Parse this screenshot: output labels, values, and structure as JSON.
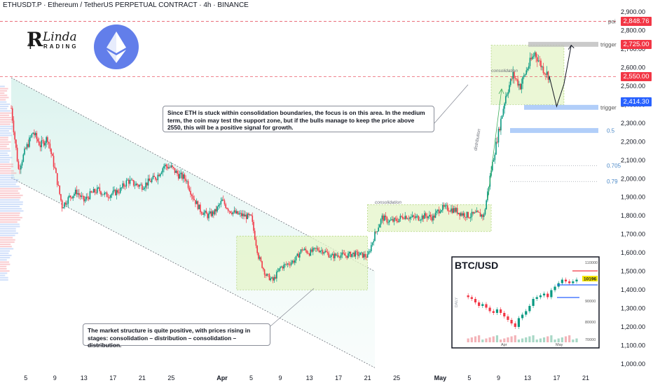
{
  "header": {
    "title": "ETHUSDT.P · Ethereum / TetherUS PERPETUAL CONTRACT · 4h · BINANCE"
  },
  "brand": {
    "letter_r": "R",
    "text_linda": "Linda",
    "letter_t": "T",
    "text_rading": "RADING",
    "logo_icon": "ethereum-diamond-icon",
    "logo_color": "#627eea"
  },
  "notes": {
    "top": "Since ETH is stuck within consolidation boundaries, the focus is on this area. In the medium term, the coin may test the support zone, but if the bulls manage to keep the price above 2550, this will be a positive signal for growth.",
    "bottom": "The market structure is quite positive, with prices rising in stages: consolidation – distribution – consolidation – distribution."
  },
  "price_tags": [
    {
      "value": "2,848.76",
      "color": "#f23645"
    },
    {
      "value": "2,725.00",
      "color": "#f23645"
    },
    {
      "value": "2,550.00",
      "color": "#f23645"
    },
    {
      "value": "2,414.30",
      "color": "#2962ff"
    }
  ],
  "chart_data": {
    "type": "candlestick",
    "symbol": "ETHUSDT.P",
    "exchange": "BINANCE",
    "timeframe": "4h",
    "y_axis": {
      "min": 1000,
      "max": 2900,
      "ticks": [
        "2,900.00",
        "2,800.00",
        "2,700.00",
        "2,600.00",
        "2,500.00",
        "2,400.00",
        "2,300.00",
        "2,200.00",
        "2,100.00",
        "2,000.00",
        "1,900.00",
        "1,800.00",
        "1,700.00",
        "1,600.00",
        "1,500.00",
        "1,400.00",
        "1,300.00",
        "1,200.00",
        "1,100.00",
        "1,000.00"
      ]
    },
    "x_axis": {
      "start": "2025-03-03",
      "ticks": [
        {
          "label": "5",
          "date": "2025-03-05",
          "bold": false
        },
        {
          "label": "9",
          "date": "2025-03-09",
          "bold": false
        },
        {
          "label": "13",
          "date": "2025-03-13",
          "bold": false
        },
        {
          "label": "17",
          "date": "2025-03-17",
          "bold": false
        },
        {
          "label": "21",
          "date": "2025-03-21",
          "bold": false
        },
        {
          "label": "25",
          "date": "2025-03-25",
          "bold": false
        },
        {
          "label": "Apr",
          "date": "2025-04-01",
          "bold": true
        },
        {
          "label": "5",
          "date": "2025-04-05",
          "bold": false
        },
        {
          "label": "9",
          "date": "2025-04-09",
          "bold": false
        },
        {
          "label": "13",
          "date": "2025-04-13",
          "bold": false
        },
        {
          "label": "17",
          "date": "2025-04-17",
          "bold": false
        },
        {
          "label": "21",
          "date": "2025-04-21",
          "bold": false
        },
        {
          "label": "25",
          "date": "2025-04-25",
          "bold": false
        },
        {
          "label": "May",
          "date": "2025-05-01",
          "bold": true
        },
        {
          "label": "5",
          "date": "2025-05-05",
          "bold": false
        },
        {
          "label": "9",
          "date": "2025-05-09",
          "bold": false
        },
        {
          "label": "13",
          "date": "2025-05-13",
          "bold": false
        },
        {
          "label": "17",
          "date": "2025-05-17",
          "bold": false
        },
        {
          "label": "21",
          "date": "2025-05-21",
          "bold": false
        }
      ]
    },
    "path": [
      [
        "2025-03-03",
        2380
      ],
      [
        "2025-03-04",
        2050
      ],
      [
        "2025-03-05",
        2160
      ],
      [
        "2025-03-06",
        2250
      ],
      [
        "2025-03-07",
        2180
      ],
      [
        "2025-03-08",
        2220
      ],
      [
        "2025-03-09",
        2050
      ],
      [
        "2025-03-10",
        1850
      ],
      [
        "2025-03-11",
        1900
      ],
      [
        "2025-03-12",
        1930
      ],
      [
        "2025-03-13",
        1880
      ],
      [
        "2025-03-14",
        1920
      ],
      [
        "2025-03-15",
        1940
      ],
      [
        "2025-03-16",
        1910
      ],
      [
        "2025-03-17",
        1920
      ],
      [
        "2025-03-18",
        1940
      ],
      [
        "2025-03-19",
        1990
      ],
      [
        "2025-03-20",
        1970
      ],
      [
        "2025-03-21",
        1960
      ],
      [
        "2025-03-22",
        1985
      ],
      [
        "2025-03-23",
        2010
      ],
      [
        "2025-03-24",
        2070
      ],
      [
        "2025-03-25",
        2060
      ],
      [
        "2025-03-26",
        2020
      ],
      [
        "2025-03-27",
        2000
      ],
      [
        "2025-03-28",
        1900
      ],
      [
        "2025-03-29",
        1830
      ],
      [
        "2025-03-30",
        1800
      ],
      [
        "2025-03-31",
        1820
      ],
      [
        "2025-04-01",
        1880
      ],
      [
        "2025-04-02",
        1830
      ],
      [
        "2025-04-03",
        1810
      ],
      [
        "2025-04-04",
        1800
      ],
      [
        "2025-04-05",
        1790
      ],
      [
        "2025-04-06",
        1580
      ],
      [
        "2025-04-07",
        1480
      ],
      [
        "2025-04-08",
        1450
      ],
      [
        "2025-04-09",
        1520
      ],
      [
        "2025-04-10",
        1540
      ],
      [
        "2025-04-11",
        1560
      ],
      [
        "2025-04-12",
        1620
      ],
      [
        "2025-04-13",
        1600
      ],
      [
        "2025-04-14",
        1620
      ],
      [
        "2025-04-15",
        1610
      ],
      [
        "2025-04-16",
        1580
      ],
      [
        "2025-04-17",
        1590
      ],
      [
        "2025-04-18",
        1585
      ],
      [
        "2025-04-19",
        1595
      ],
      [
        "2025-04-20",
        1590
      ],
      [
        "2025-04-21",
        1580
      ],
      [
        "2025-04-22",
        1700
      ],
      [
        "2025-04-23",
        1790
      ],
      [
        "2025-04-24",
        1770
      ],
      [
        "2025-04-25",
        1775
      ],
      [
        "2025-04-26",
        1800
      ],
      [
        "2025-04-27",
        1790
      ],
      [
        "2025-04-28",
        1790
      ],
      [
        "2025-04-29",
        1800
      ],
      [
        "2025-04-30",
        1790
      ],
      [
        "2025-05-01",
        1840
      ],
      [
        "2025-05-02",
        1840
      ],
      [
        "2025-05-03",
        1830
      ],
      [
        "2025-05-04",
        1810
      ],
      [
        "2025-05-05",
        1800
      ],
      [
        "2025-05-06",
        1810
      ],
      [
        "2025-05-07",
        1800
      ],
      [
        "2025-05-08",
        2050
      ],
      [
        "2025-05-09",
        2250
      ],
      [
        "2025-05-10",
        2450
      ],
      [
        "2025-05-11",
        2560
      ],
      [
        "2025-05-12",
        2500
      ],
      [
        "2025-05-13",
        2600
      ],
      [
        "2025-05-14",
        2680
      ],
      [
        "2025-05-15",
        2600
      ],
      [
        "2025-05-16",
        2550
      ]
    ],
    "zones": [
      {
        "label": "",
        "from": "2025-04-03",
        "to": "2025-04-21",
        "low": 1400,
        "high": 1690
      },
      {
        "label": "consolidation",
        "from": "2025-04-21",
        "to": "2025-05-08",
        "low": 1715,
        "high": 1860
      },
      {
        "label": "consolidation",
        "from": "2025-05-08",
        "to": "2025-05-18",
        "low": 2400,
        "high": 2720
      }
    ],
    "levels": [
      {
        "label": "poi",
        "value": 2848.76,
        "style": "dashed"
      },
      {
        "label": "trigger",
        "value": 2725,
        "style": "band"
      },
      {
        "label": "",
        "value": 2550,
        "style": "dashed"
      },
      {
        "label": "trigger",
        "value": 2385,
        "style": "band"
      },
      {
        "label": "0.5",
        "value": 2260,
        "style": "band"
      },
      {
        "label": "0.705",
        "value": 2070,
        "style": "dotted"
      },
      {
        "label": "0.79",
        "value": 1985,
        "style": "dotted"
      }
    ],
    "channel": {
      "upper": [
        [
          "2025-03-03",
          2545
        ],
        [
          "2025-04-22",
          1500
        ]
      ],
      "lower": [
        [
          "2025-03-03",
          2005
        ],
        [
          "2025-04-22",
          980
        ]
      ]
    },
    "annotations": [
      {
        "text": "consolidation",
        "at": [
          "2025-05-08",
          2575
        ]
      },
      {
        "text": "distribution",
        "at": [
          "2025-05-06",
          2150
        ]
      },
      {
        "text": "consolidation",
        "at": [
          "2025-04-22",
          1865
        ]
      }
    ],
    "projection": [
      [
        "2025-05-16",
        2550
      ],
      [
        "2025-05-17",
        2390
      ],
      [
        "2025-05-18",
        2510
      ],
      [
        "2025-05-19",
        2720
      ]
    ],
    "inset": {
      "title": "BTC/USD",
      "label_side": "DAILY",
      "y_ticks": [
        "110000",
        "90000",
        "80000",
        "70000"
      ],
      "x_ticks": [
        "Apr",
        "May"
      ],
      "last_price": "10196",
      "path": [
        96,
        95,
        94,
        92,
        90,
        91,
        89,
        87,
        86,
        88,
        86,
        84,
        82,
        80,
        78,
        83,
        85,
        87,
        90,
        94,
        95,
        96,
        97,
        95,
        99,
        101,
        103,
        105,
        104,
        103,
        104,
        105
      ]
    }
  }
}
